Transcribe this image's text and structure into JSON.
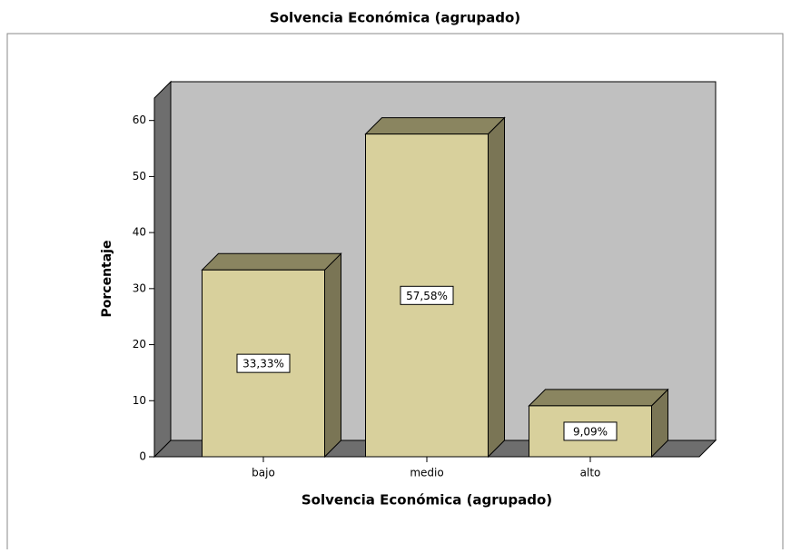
{
  "chart_data": {
    "type": "bar3d",
    "title": "Solvencia Económica (agrupado)",
    "x_label": "Solvencia Económica (agrupado)",
    "y_label": "Porcentaje",
    "categories": [
      "bajo",
      "medio",
      "alto"
    ],
    "values": [
      33.33,
      57.58,
      9.09
    ],
    "value_labels": [
      "33,33%",
      "57,58%",
      "9,09%"
    ],
    "color": "#d8d09c",
    "ylim": [
      0,
      64
    ],
    "yticks": [
      0,
      10,
      20,
      30,
      40,
      50,
      60
    ]
  }
}
